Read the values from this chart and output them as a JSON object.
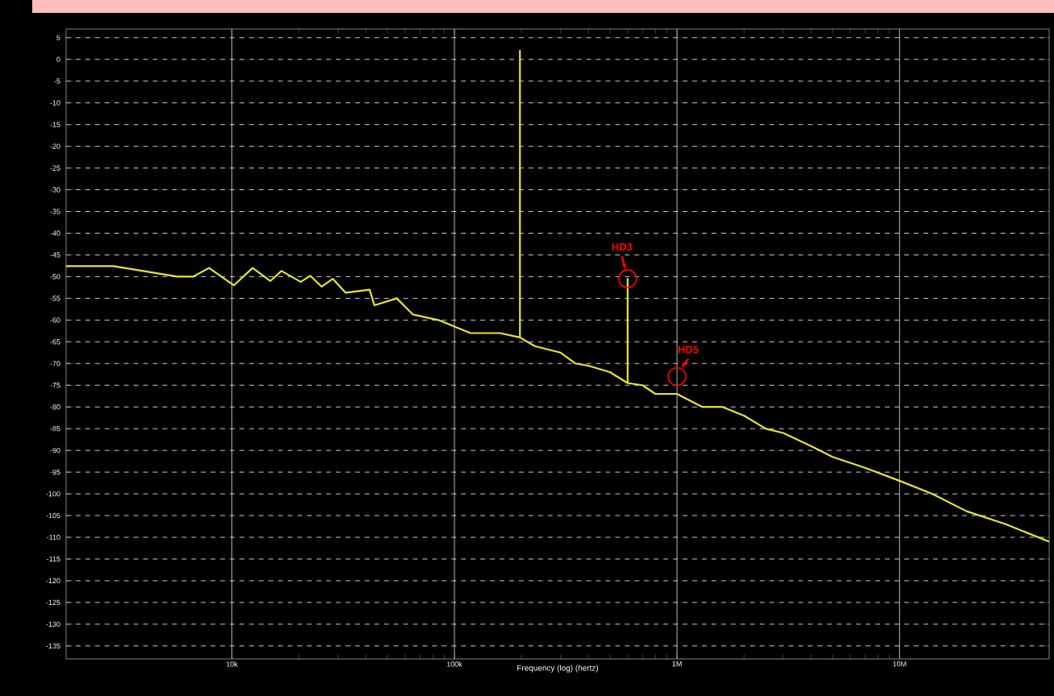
{
  "chart_data": {
    "type": "line",
    "xlabel": "Frequency (log) (hertz)",
    "log": "x",
    "grid": true,
    "xlim": [
      1800,
      47000000
    ],
    "ylim": [
      -138,
      7
    ],
    "xticks": [
      {
        "value": 10000,
        "label": "10k"
      },
      {
        "value": 100000,
        "label": "100k"
      },
      {
        "value": 1000000,
        "label": "1M"
      },
      {
        "value": 10000000,
        "label": "10M"
      }
    ],
    "yticks": [
      -135,
      -130,
      -125,
      -120,
      -115,
      -110,
      -105,
      -100,
      -95,
      -90,
      -85,
      -80,
      -75,
      -70,
      -65,
      -60,
      -55,
      -50,
      -45,
      -40,
      -35,
      -30,
      -25,
      -20,
      -15,
      -10,
      -5,
      0,
      5
    ],
    "series": [
      {
        "color": "#e6e632",
        "x": [
          1800,
          2940,
          5690,
          6700,
          7900,
          10200,
          12400,
          14900,
          16700,
          20400,
          22500,
          25300,
          28400,
          32400,
          41600,
          43700,
          55100,
          65000,
          84800,
          118000,
          160000,
          197000,
          197000,
          197000,
          230000,
          300000,
          350000,
          400000,
          500000,
          600000,
          600000,
          600000,
          700000,
          800000,
          1000000,
          1300000,
          1600000,
          2000000,
          2500000,
          3000000,
          4000000,
          5000000,
          7000000,
          10000000,
          14000000,
          20000000,
          30000000,
          47000000
        ],
        "values": [
          -47.6,
          -47.6,
          -50,
          -50,
          -48,
          -52,
          -48,
          -51,
          -48.7,
          -51.2,
          -49.8,
          -52.3,
          -50.5,
          -53.7,
          -53,
          -56.6,
          -55,
          -58.7,
          -60,
          -63,
          -63,
          -64,
          2,
          -64,
          -66,
          -67.5,
          -70,
          -70.5,
          -72,
          -74.5,
          -50.5,
          -74.5,
          -75,
          -77,
          -77,
          -80,
          -80,
          -82,
          -85,
          -86,
          -89,
          -91.5,
          -94,
          -97,
          -100,
          -104,
          -107,
          -111
        ]
      }
    ],
    "annotations": [
      {
        "text": "HD3",
        "x": 600000,
        "y": -50.5
      },
      {
        "text": "HD5",
        "x": 1000000,
        "y": -73
      }
    ]
  }
}
